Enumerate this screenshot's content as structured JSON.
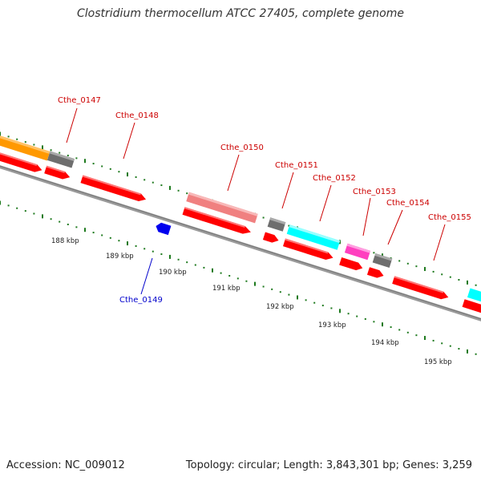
{
  "title": "Clostridium thermocellum ATCC 27405, complete genome",
  "footer": {
    "accession": "Accession: NC_009012",
    "summary": "Topology: circular; Length: 3,843,301 bp; Genes: 3,259"
  },
  "scale_labels": [
    "188 kbp",
    "189 kbp",
    "190 kbp",
    "191 kbp",
    "192 kbp",
    "193 kbp",
    "194 kbp",
    "195 kbp"
  ],
  "colors": {
    "forward_cds": "#ff0000",
    "reverse_cds": "#0000ff",
    "backbone": "#808080",
    "tick": "#1e7a1e",
    "orange_feature": "#ff9900",
    "gray_feature": "#6e6e6e",
    "pink_feature": "#f08080",
    "cyan_feature": "#00ffff",
    "magenta_feature": "#ff3fbf"
  },
  "gene_labels": [
    {
      "name": "Cthe_0147",
      "strand": "forward"
    },
    {
      "name": "Cthe_0148",
      "strand": "forward"
    },
    {
      "name": "Cthe_0149",
      "strand": "reverse"
    },
    {
      "name": "Cthe_0150",
      "strand": "forward"
    },
    {
      "name": "Cthe_0151",
      "strand": "forward"
    },
    {
      "name": "Cthe_0152",
      "strand": "forward"
    },
    {
      "name": "Cthe_0153",
      "strand": "forward"
    },
    {
      "name": "Cthe_0154",
      "strand": "forward"
    },
    {
      "name": "Cthe_0155",
      "strand": "forward"
    }
  ]
}
